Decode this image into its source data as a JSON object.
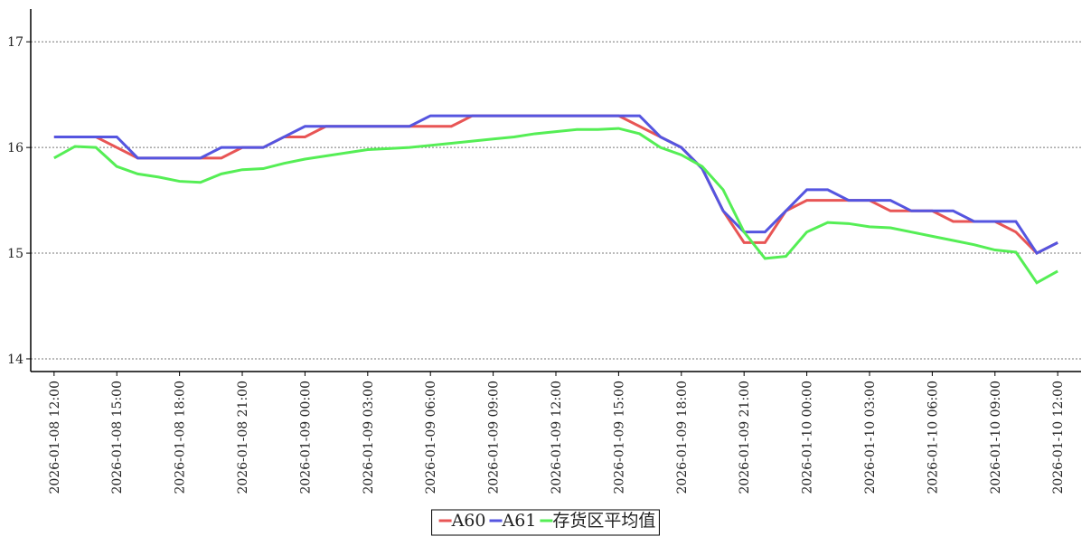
{
  "chart_data": {
    "type": "line",
    "x": [
      "2026-01-08 12:00",
      "2026-01-08 13:00",
      "2026-01-08 14:00",
      "2026-01-08 15:00",
      "2026-01-08 16:00",
      "2026-01-08 17:00",
      "2026-01-08 18:00",
      "2026-01-08 19:00",
      "2026-01-08 20:00",
      "2026-01-08 21:00",
      "2026-01-08 22:00",
      "2026-01-08 23:00",
      "2026-01-09 00:00",
      "2026-01-09 01:00",
      "2026-01-09 02:00",
      "2026-01-09 03:00",
      "2026-01-09 04:00",
      "2026-01-09 05:00",
      "2026-01-09 06:00",
      "2026-01-09 07:00",
      "2026-01-09 08:00",
      "2026-01-09 09:00",
      "2026-01-09 10:00",
      "2026-01-09 11:00",
      "2026-01-09 12:00",
      "2026-01-09 13:00",
      "2026-01-09 14:00",
      "2026-01-09 15:00",
      "2026-01-09 16:00",
      "2026-01-09 17:00",
      "2026-01-09 18:00",
      "2026-01-09 19:00",
      "2026-01-09 20:00",
      "2026-01-09 21:00",
      "2026-01-09 22:00",
      "2026-01-09 23:00",
      "2026-01-10 00:00",
      "2026-01-10 01:00",
      "2026-01-10 02:00",
      "2026-01-10 03:00",
      "2026-01-10 04:00",
      "2026-01-10 05:00",
      "2026-01-10 06:00",
      "2026-01-10 07:00",
      "2026-01-10 08:00",
      "2026-01-10 09:00",
      "2026-01-10 10:00",
      "2026-01-10 11:00",
      "2026-01-10 12:00"
    ],
    "series": [
      {
        "name": "A60",
        "color": "#e85555",
        "values": [
          16.1,
          16.1,
          16.1,
          16.0,
          15.9,
          15.9,
          15.9,
          15.9,
          15.9,
          16.0,
          16.0,
          16.1,
          16.1,
          16.2,
          16.2,
          16.2,
          16.2,
          16.2,
          16.2,
          16.2,
          16.3,
          16.3,
          16.3,
          16.3,
          16.3,
          16.3,
          16.3,
          16.3,
          16.2,
          16.1,
          16.0,
          15.8,
          15.4,
          15.1,
          15.1,
          15.4,
          15.5,
          15.5,
          15.5,
          15.5,
          15.4,
          15.4,
          15.4,
          15.3,
          15.3,
          15.3,
          15.2,
          15.0,
          15.1
        ]
      },
      {
        "name": "A61",
        "color": "#5555e0",
        "values": [
          16.1,
          16.1,
          16.1,
          16.1,
          15.9,
          15.9,
          15.9,
          15.9,
          16.0,
          16.0,
          16.0,
          16.1,
          16.2,
          16.2,
          16.2,
          16.2,
          16.2,
          16.2,
          16.3,
          16.3,
          16.3,
          16.3,
          16.3,
          16.3,
          16.3,
          16.3,
          16.3,
          16.3,
          16.3,
          16.1,
          16.0,
          15.8,
          15.4,
          15.2,
          15.2,
          15.4,
          15.6,
          15.6,
          15.5,
          15.5,
          15.5,
          15.4,
          15.4,
          15.4,
          15.3,
          15.3,
          15.3,
          15.0,
          15.1
        ]
      },
      {
        "name": "存货区平均值",
        "color": "#55ee55",
        "values": [
          15.9,
          16.01,
          16.0,
          15.82,
          15.75,
          15.72,
          15.68,
          15.67,
          15.75,
          15.79,
          15.8,
          15.85,
          15.89,
          15.92,
          15.95,
          15.98,
          15.99,
          16.0,
          16.02,
          16.04,
          16.06,
          16.08,
          16.1,
          16.13,
          16.15,
          16.17,
          16.17,
          16.18,
          16.13,
          16.0,
          15.93,
          15.82,
          15.6,
          15.2,
          14.95,
          14.97,
          15.2,
          15.29,
          15.28,
          15.25,
          15.24,
          15.2,
          15.16,
          15.12,
          15.08,
          15.03,
          15.01,
          14.72,
          14.83
        ]
      }
    ],
    "xlim": [
      "2026-01-08 10:53",
      "2026-01-10 13:07"
    ],
    "xticks": [
      "2026-01-08 12:00",
      "2026-01-08 15:00",
      "2026-01-08 18:00",
      "2026-01-08 21:00",
      "2026-01-09 00:00",
      "2026-01-09 03:00",
      "2026-01-09 06:00",
      "2026-01-09 09:00",
      "2026-01-09 12:00",
      "2026-01-09 15:00",
      "2026-01-09 18:00",
      "2026-01-09 21:00",
      "2026-01-10 00:00",
      "2026-01-10 03:00",
      "2026-01-10 06:00",
      "2026-01-10 09:00",
      "2026-01-10 12:00"
    ],
    "ylim": [
      13.88,
      17.31
    ],
    "yticks": [
      14,
      15,
      16,
      17
    ],
    "grid": true,
    "legend": "bottom"
  }
}
